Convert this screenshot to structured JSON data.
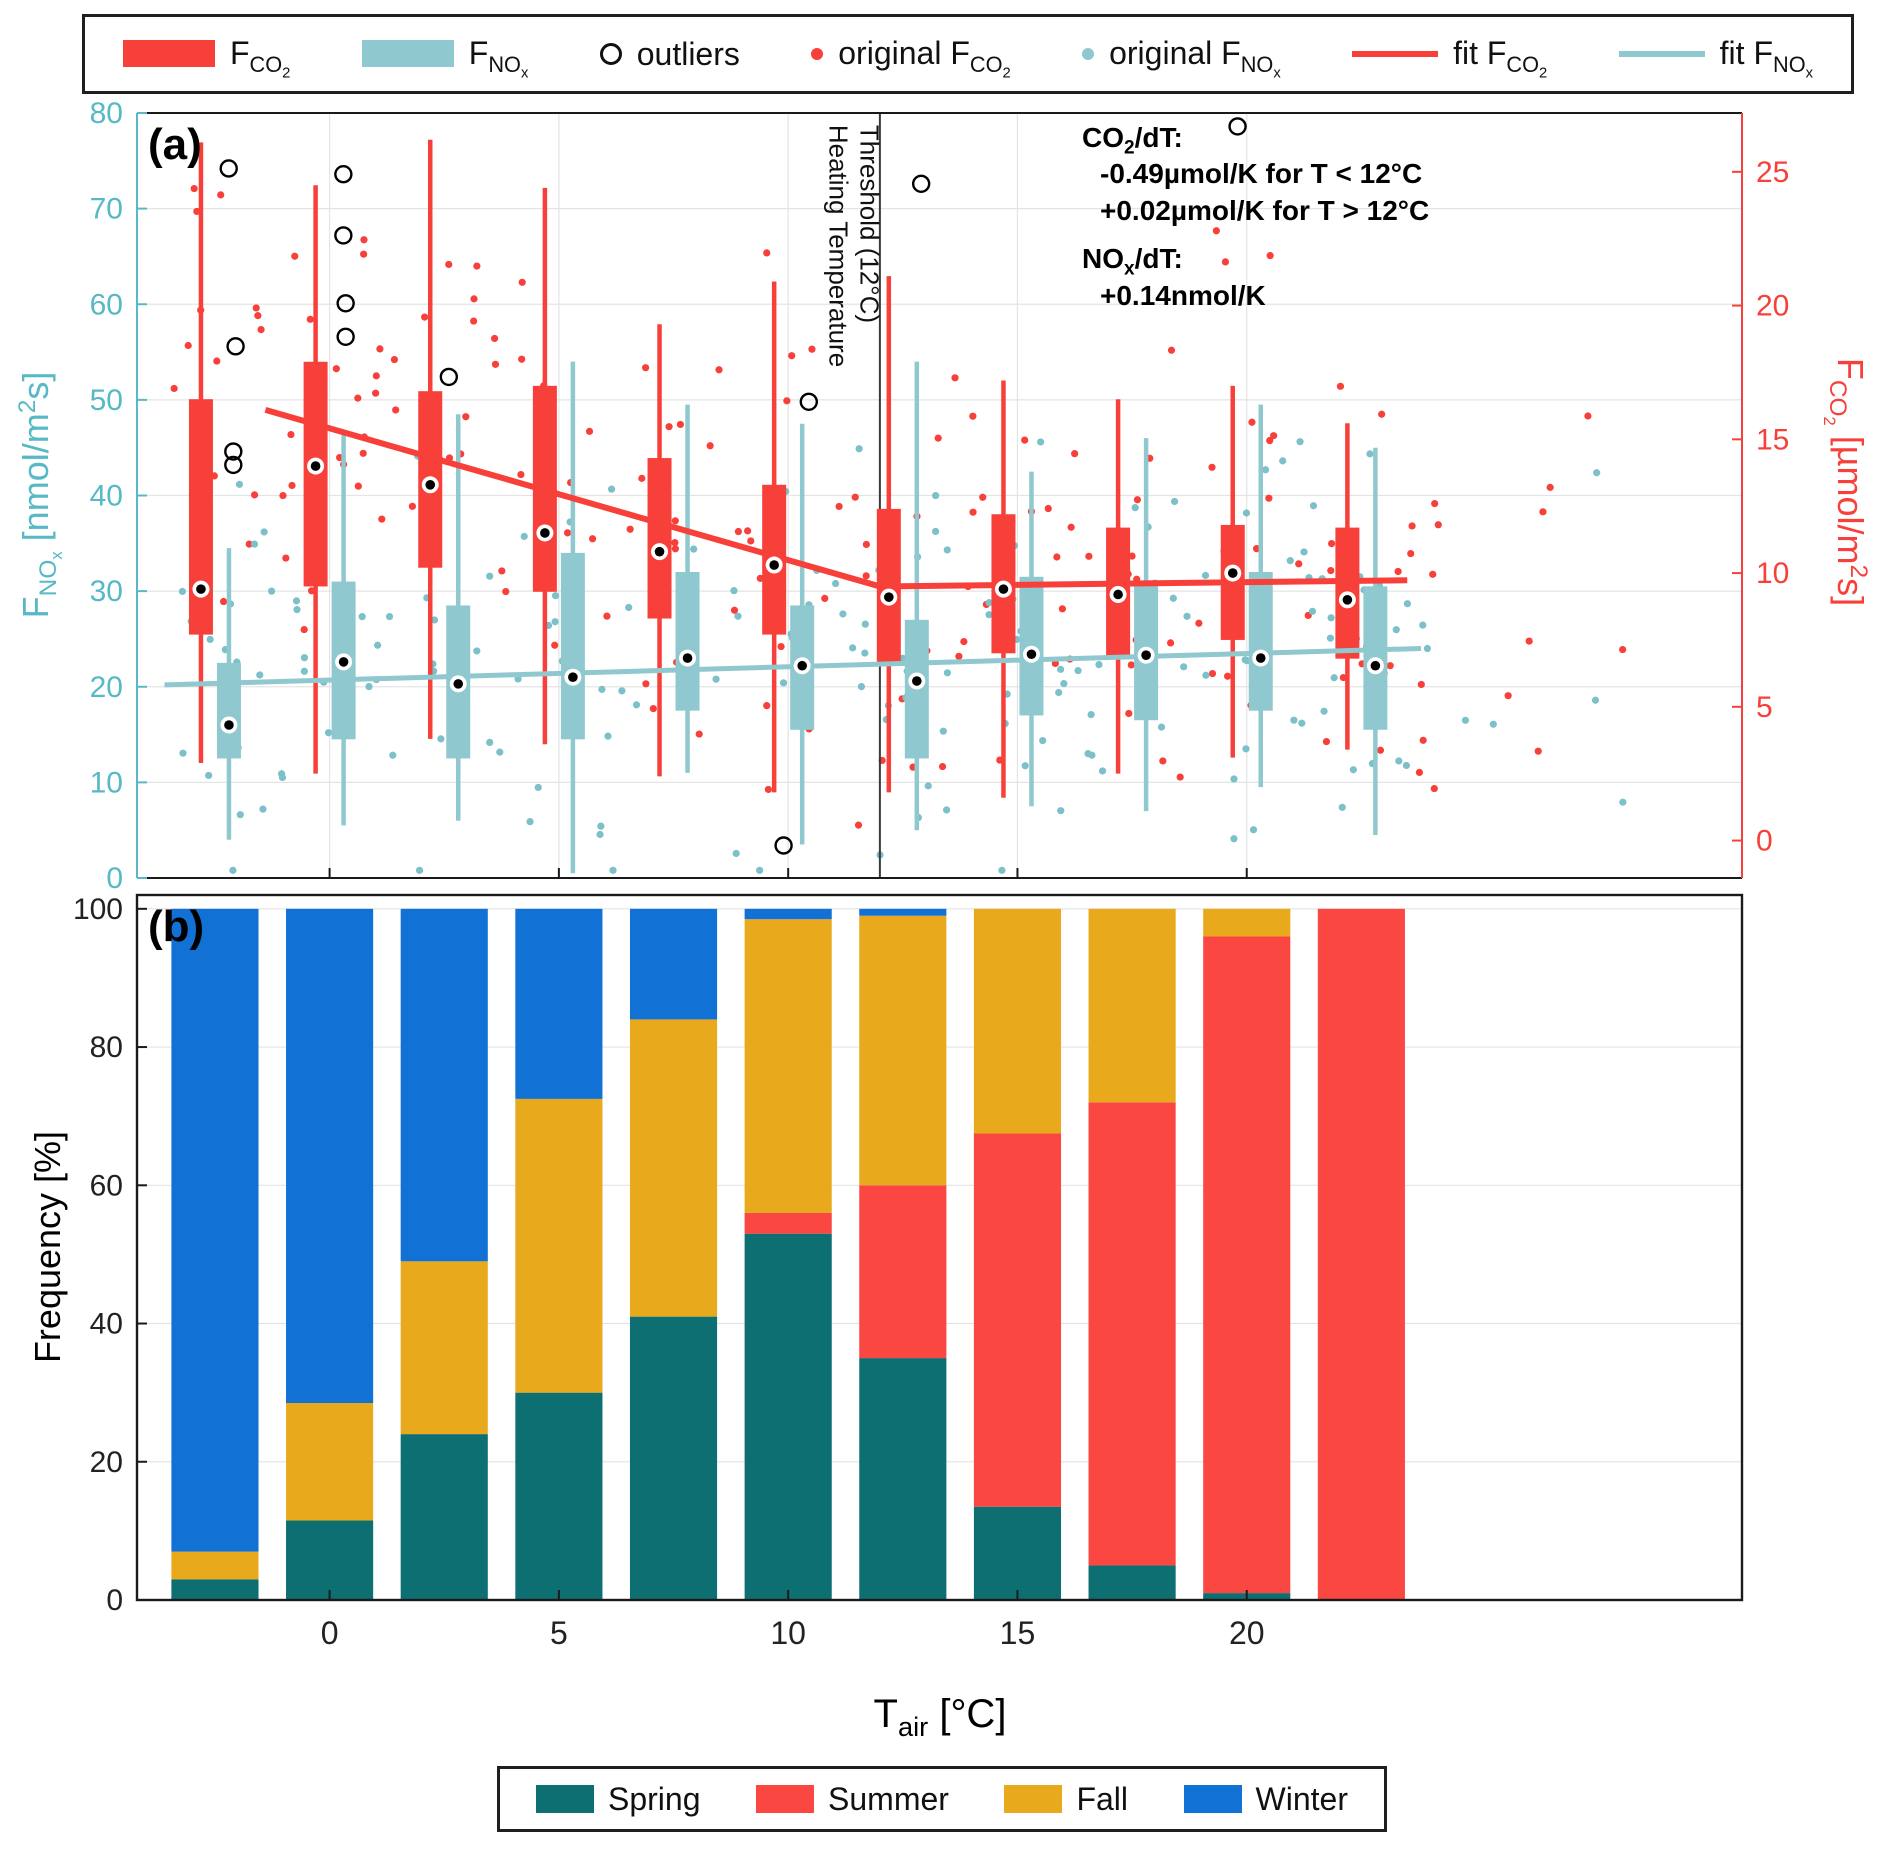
{
  "colors": {
    "co2": "#f8403a",
    "nox": "#8fc8ce",
    "nox_text": "#56b9c5",
    "nox_dot": "#7cc0c9",
    "grid": "#e4e4e4",
    "ink": "#1a1a1a"
  },
  "legend_top": {
    "items": [
      {
        "key": "fco2",
        "swatch": "box-red",
        "label": "F<sub>CO<sub>2</sub></sub>"
      },
      {
        "key": "fnox",
        "swatch": "box-teal",
        "label": "F<sub>NO<sub>x</sub></sub>"
      },
      {
        "key": "outliers",
        "swatch": "open-circle",
        "label": "outliers"
      },
      {
        "key": "orig-fco2",
        "swatch": "dot-red",
        "label": "original F<sub>CO<sub>2</sub></sub>"
      },
      {
        "key": "orig-fnox",
        "swatch": "dot-teal",
        "label": "original F<sub>NO<sub>x</sub></sub>"
      },
      {
        "key": "fit-fco2",
        "swatch": "line-red",
        "label": "fit F<sub>CO<sub>2</sub></sub>"
      },
      {
        "key": "fit-fnox",
        "swatch": "line-teal",
        "label": "fit F<sub>NO<sub>x</sub></sub>"
      }
    ]
  },
  "panel_a": {
    "tag": "(a)",
    "annotation": {
      "l1": "CO<sub>2</sub>/dT:",
      "l2": "-0.49µmol/K for T &lt; 12°C",
      "l3": "+0.02µmol/K for T &gt; 12°C",
      "l4": "NO<sub>x</sub>/dT:",
      "l5": "+0.14nmol/K"
    }
  },
  "panel_b": {
    "tag": "(b)"
  },
  "chart_data": [
    {
      "type": "box",
      "panel": "a",
      "xlim": [
        -4.2,
        30.8
      ],
      "x_ticks": [
        0,
        5,
        10,
        15,
        20
      ],
      "left_axis": {
        "label": "F_NOx [nmol/m2s]",
        "label_html": "F<sub>NO<sub>x</sub></sub> [nmol/m<sup>2</sup>s]",
        "lim": [
          0,
          80
        ],
        "ticks": [
          0,
          10,
          20,
          30,
          40,
          50,
          60,
          70,
          80
        ]
      },
      "right_axis": {
        "label": "F_CO2 [umol/m2s]",
        "label_html": "F<sub>CO<sub>2</sub></sub> [µmol/m<sup>2</sup>s]",
        "lim": [
          -1.4,
          27.2
        ],
        "ticks": [
          0,
          5,
          10,
          15,
          20,
          25
        ]
      },
      "threshold": {
        "x": 12,
        "label1": "Heating Temperature",
        "label2": "Threshold (12°C)"
      },
      "box_centers": [
        -2.5,
        0,
        2.5,
        5,
        7.5,
        10,
        12.5,
        15,
        17.5,
        20,
        22.5
      ],
      "co2_boxes": [
        [
          2.9,
          7.7,
          9.4,
          16.5,
          26.1
        ],
        [
          2.5,
          9.5,
          14.0,
          17.9,
          24.5
        ],
        [
          3.8,
          10.2,
          13.3,
          16.8,
          26.2
        ],
        [
          3.6,
          9.3,
          11.5,
          17.0,
          24.4
        ],
        [
          2.4,
          8.3,
          10.8,
          14.3,
          19.3
        ],
        [
          1.8,
          7.7,
          10.3,
          13.3,
          20.9
        ],
        [
          1.8,
          6.6,
          9.1,
          12.4,
          21.1
        ],
        [
          1.6,
          7.0,
          9.4,
          12.2,
          17.2
        ],
        [
          2.5,
          6.8,
          9.2,
          11.7,
          16.5
        ],
        [
          3.1,
          7.5,
          10.0,
          11.8,
          17.0
        ],
        [
          3.4,
          6.8,
          9.0,
          11.7,
          15.6
        ]
      ],
      "nox_boxes": [
        [
          4.0,
          12.5,
          16.0,
          22.5,
          34.5
        ],
        [
          5.5,
          14.5,
          22.6,
          31.0,
          46.5
        ],
        [
          6.0,
          12.5,
          20.3,
          28.5,
          48.5
        ],
        [
          0.5,
          14.5,
          21.0,
          34.0,
          54.0
        ],
        [
          11.0,
          17.5,
          23.0,
          32.0,
          49.5
        ],
        [
          3.5,
          15.5,
          22.2,
          28.5,
          47.5
        ],
        [
          5.0,
          12.5,
          20.6,
          27.0,
          54.0
        ],
        [
          7.5,
          17.0,
          23.4,
          31.5,
          42.5
        ],
        [
          7.0,
          16.5,
          23.3,
          31.0,
          46.0
        ],
        [
          9.5,
          17.5,
          23.0,
          32.0,
          49.5
        ],
        [
          4.5,
          15.5,
          22.2,
          30.5,
          45.0
        ]
      ],
      "outliers_nox_units": [
        [
          -2.2,
          74.2
        ],
        [
          -2.05,
          55.6
        ],
        [
          -2.1,
          44.6
        ],
        [
          -2.1,
          43.2
        ],
        [
          0.3,
          73.6
        ],
        [
          0.3,
          67.2
        ],
        [
          0.35,
          60.1
        ],
        [
          0.35,
          56.6
        ],
        [
          2.6,
          52.4
        ],
        [
          9.9,
          3.4
        ],
        [
          10.45,
          49.8
        ],
        [
          12.9,
          72.6
        ],
        [
          19.8,
          78.6
        ]
      ],
      "fit_co2": [
        [
          -1.4,
          16.1
        ],
        [
          12,
          9.5
        ],
        [
          23.5,
          9.73
        ]
      ],
      "fit_nox": [
        [
          -3.6,
          20.2
        ],
        [
          23.8,
          24.0
        ]
      ],
      "scatter": {
        "seed": 1234567,
        "n": 185,
        "x_range": [
          -3.4,
          24.2
        ],
        "tail_n": 7,
        "tail_x_range": [
          24.2,
          28.6
        ],
        "co2_sd": 4.3,
        "nox_sd": 10.5,
        "co2_clip": [
          0.3,
          26.8
        ],
        "nox_clip": [
          0.8,
          76.0
        ]
      }
    },
    {
      "type": "bar",
      "stacked": true,
      "panel": "b",
      "categories": [
        -2.5,
        0,
        2.5,
        5,
        7.5,
        10,
        12.5,
        15,
        17.5,
        20,
        22.5
      ],
      "bar_width_deg": 1.9,
      "ylim": [
        0,
        102
      ],
      "y_ticks": [
        0,
        20,
        40,
        60,
        80,
        100
      ],
      "x_ticks": [
        0,
        5,
        10,
        15,
        20
      ],
      "ylabel": "Frequency [%]",
      "xlabel": "T_air [°C]",
      "xlabel_html": "T<sub>air</sub> [°C]",
      "series": [
        {
          "name": "Spring",
          "color": "#0e6f72",
          "values": [
            3,
            11.5,
            24,
            30,
            41,
            53,
            35,
            13.5,
            5,
            1,
            0
          ]
        },
        {
          "name": "Summer",
          "color": "#fb4742",
          "values": [
            0,
            0,
            0,
            0,
            0,
            3,
            25,
            54,
            67,
            95,
            100
          ]
        },
        {
          "name": "Fall",
          "color": "#e9a91c",
          "values": [
            4,
            17,
            25,
            42.5,
            43,
            42.5,
            39,
            32.5,
            28,
            4,
            0
          ]
        },
        {
          "name": "Winter",
          "color": "#1271d5",
          "values": [
            93,
            71.5,
            51,
            27.5,
            16,
            1.5,
            1,
            0,
            0,
            0,
            0
          ]
        }
      ]
    }
  ]
}
